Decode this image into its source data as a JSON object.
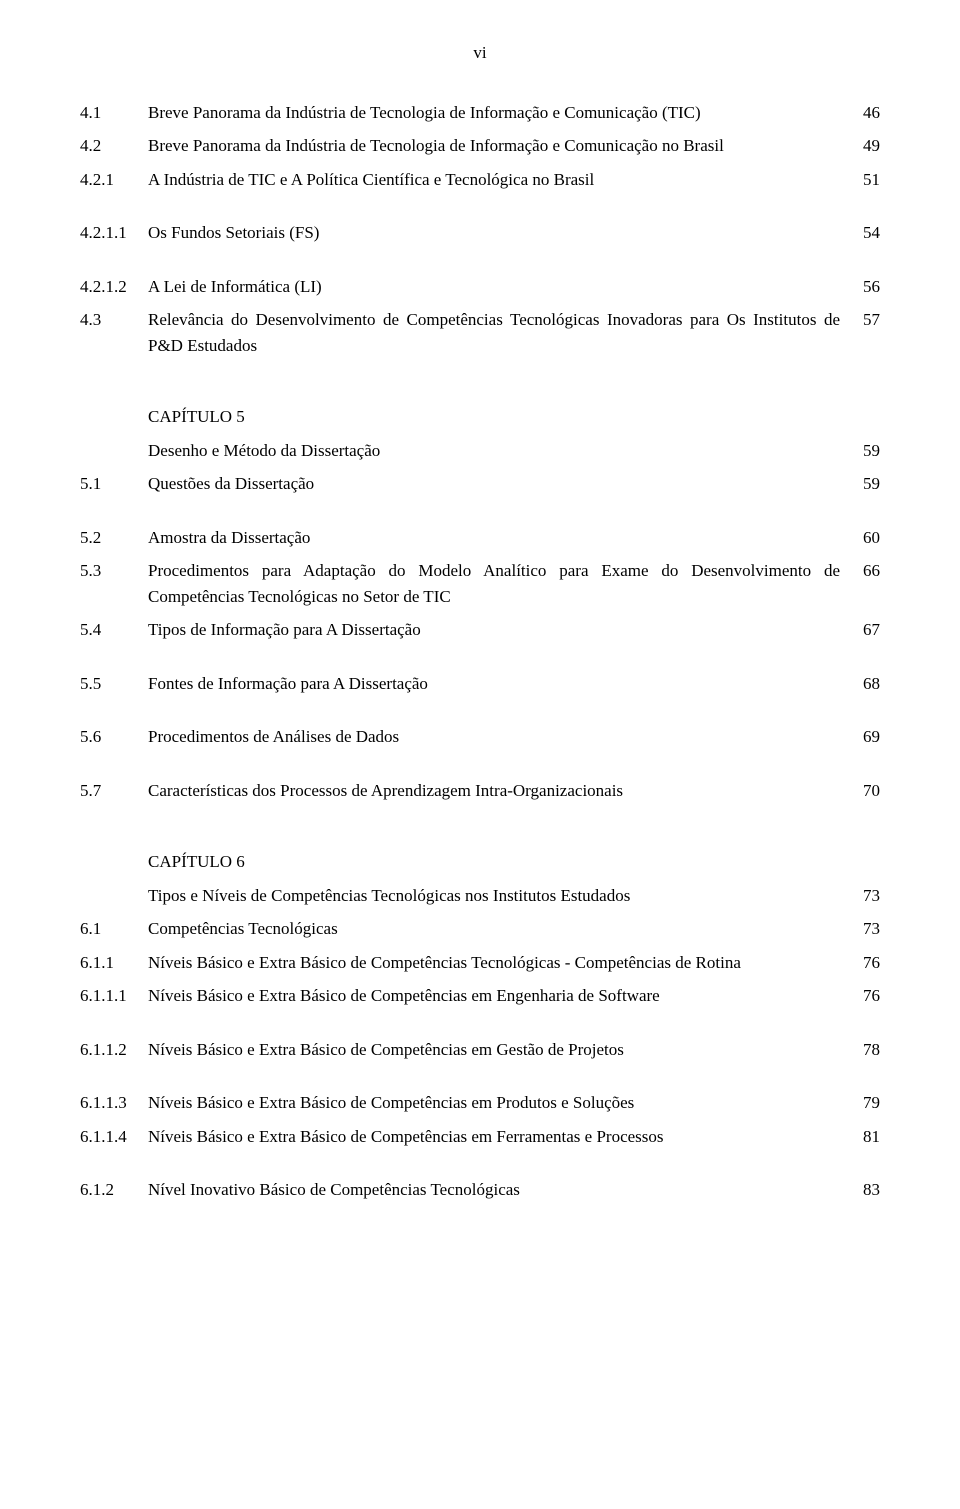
{
  "page_label": "vi",
  "fonts": {
    "body_family": "Times New Roman",
    "body_size_pt": 13
  },
  "colors": {
    "text": "#000000",
    "background": "#ffffff"
  },
  "entries": [
    {
      "num": "4.1",
      "title": "Breve Panorama da Indústria de Tecnologia de Informação e Comunicação (TIC)",
      "page": "46"
    },
    {
      "num": "4.2",
      "title": "Breve Panorama da Indústria de Tecnologia de Informação e Comunicação no Brasil",
      "page": "49"
    },
    {
      "num": "4.2.1",
      "title": "A Indústria de TIC e A Política Científica e Tecnológica no Brasil",
      "page": "51"
    },
    {
      "spacer": "sm"
    },
    {
      "num": "4.2.1.1",
      "title": "Os Fundos Setoriais (FS)",
      "page": "54"
    },
    {
      "spacer": "sm"
    },
    {
      "num": "4.2.1.2",
      "title": "A Lei de Informática (LI)",
      "page": "56"
    },
    {
      "num": "4.3",
      "title": "Relevância do Desenvolvimento de Competências Tecnológicas Inovadoras para Os Institutos de P&D Estudados",
      "page": "57"
    },
    {
      "spacer": "lg"
    },
    {
      "num": "",
      "title": "CAPÍTULO 5",
      "page": ""
    },
    {
      "num": "",
      "title": "Desenho e Método da Dissertação",
      "page": "59"
    },
    {
      "num": "5.1",
      "title": "Questões da Dissertação",
      "page": "59"
    },
    {
      "spacer": "sm"
    },
    {
      "num": "5.2",
      "title": "Amostra da Dissertação",
      "page": "60"
    },
    {
      "num": "5.3",
      "title": "Procedimentos para Adaptação do Modelo Analítico para Exame do Desenvolvimento de Competências Tecnológicas no Setor de TIC",
      "page": "66"
    },
    {
      "num": "5.4",
      "title": "Tipos de Informação para A Dissertação",
      "page": "67"
    },
    {
      "spacer": "sm"
    },
    {
      "num": "5.5",
      "title": "Fontes de Informação para A Dissertação",
      "page": "68"
    },
    {
      "spacer": "sm"
    },
    {
      "num": "5.6",
      "title": "Procedimentos de Análises de Dados",
      "page": "69"
    },
    {
      "spacer": "sm"
    },
    {
      "num": "5.7",
      "title": "Características dos Processos de Aprendizagem Intra-Organizacionais",
      "page": "70"
    },
    {
      "spacer": "lg"
    },
    {
      "num": "",
      "title": "CAPÍTULO 6",
      "page": ""
    },
    {
      "num": "",
      "title": "Tipos e Níveis de Competências Tecnológicas nos Institutos Estudados",
      "page": "73"
    },
    {
      "num": "6.1",
      "title": "Competências Tecnológicas",
      "page": "73"
    },
    {
      "num": "6.1.1",
      "title": "Níveis Básico e Extra Básico de Competências Tecnológicas - Competências de Rotina",
      "page": "76"
    },
    {
      "num": "6.1.1.1",
      "title": "Níveis Básico e Extra Básico de Competências em Engenharia de Software",
      "page": "76"
    },
    {
      "spacer": "sm"
    },
    {
      "num": "6.1.1.2",
      "title": "Níveis Básico e Extra Básico de Competências em Gestão de Projetos",
      "page": "78"
    },
    {
      "spacer": "sm"
    },
    {
      "num": "6.1.1.3",
      "title": "Níveis Básico e Extra Básico de Competências em Produtos e Soluções",
      "page": "79"
    },
    {
      "num": "6.1.1.4",
      "title": "Níveis Básico e Extra Básico de Competências em Ferramentas e Processos",
      "page": "81"
    },
    {
      "spacer": "sm"
    },
    {
      "num": "6.1.2",
      "title": "Nível Inovativo Básico de Competências Tecnológicas",
      "page": "83"
    }
  ]
}
